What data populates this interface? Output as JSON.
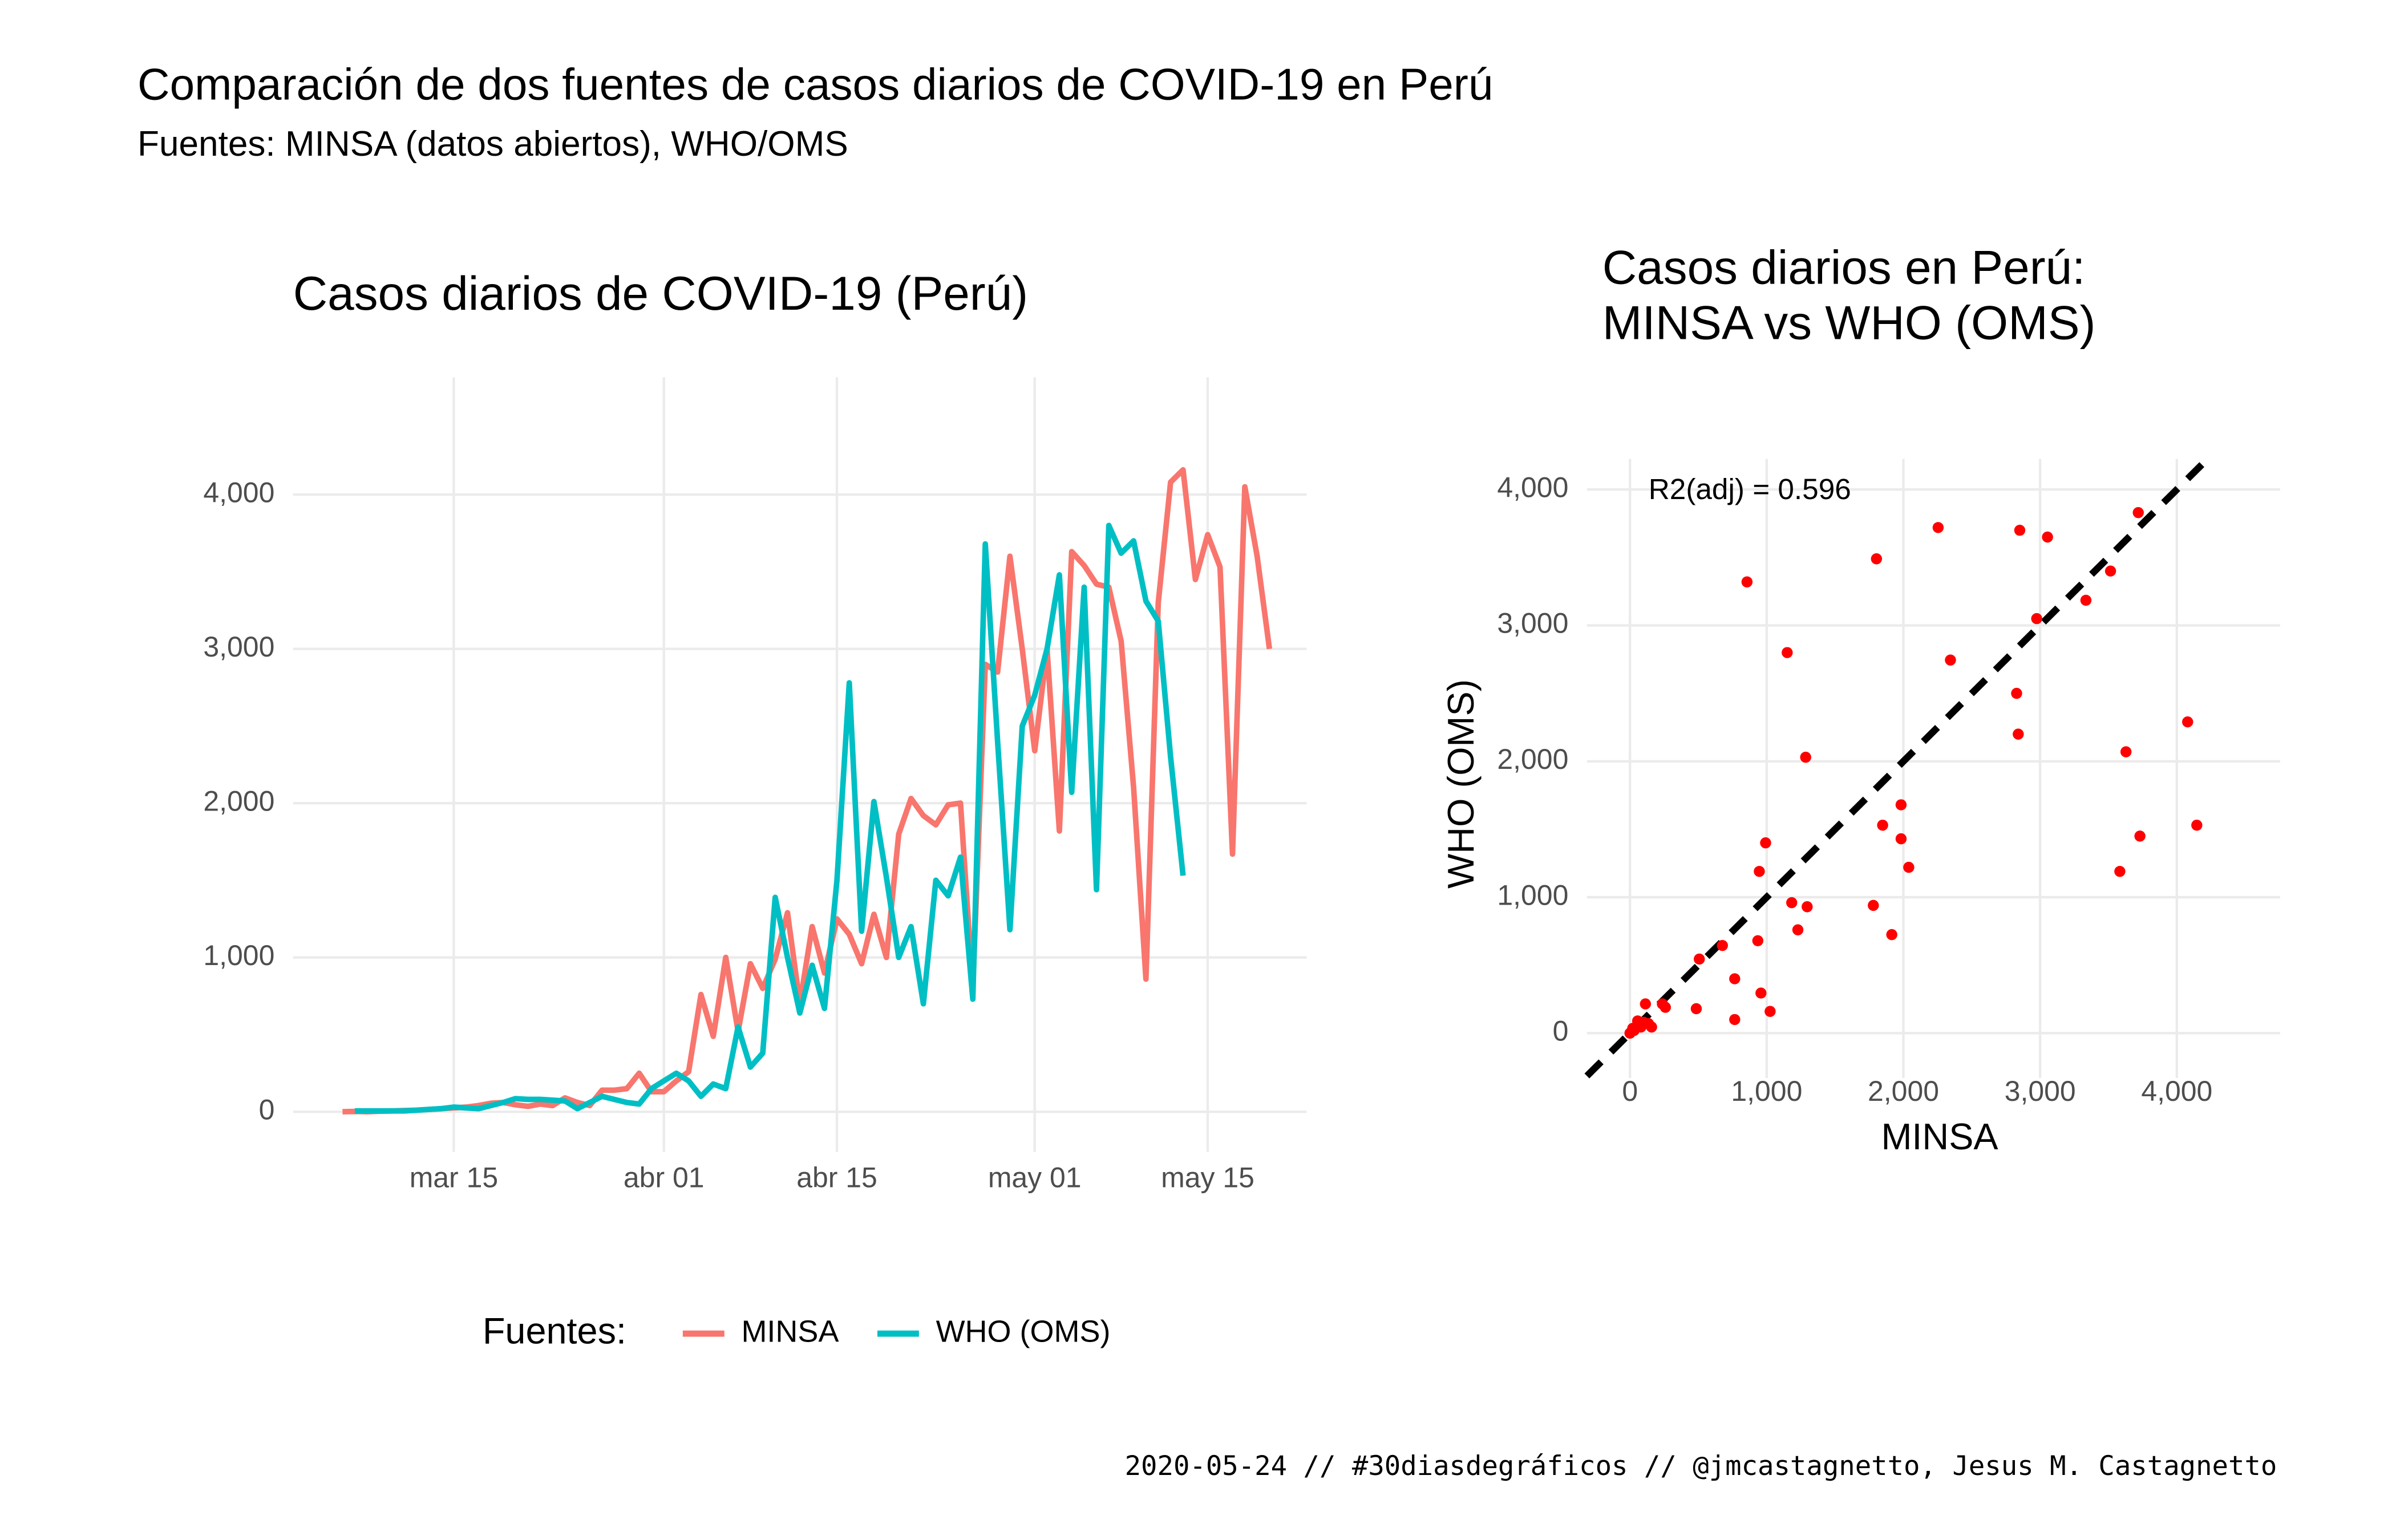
{
  "title": "Comparación de dos fuentes de casos diarios de COVID-19 en Perú",
  "subtitle": "Fuentes: MINSA (datos abiertos), WHO/OMS",
  "caption": "2020-05-24 // #30diasdegráficos // @jmcastagnetto, Jesus M. Castagnetto",
  "chart_data": [
    {
      "type": "line",
      "title": [
        "Casos diarios de COVID-19 (Perú)"
      ],
      "legend_title": "Fuentes:",
      "legend": "bottom",
      "grid": true,
      "x": [
        "03-06",
        "03-07",
        "03-08",
        "03-09",
        "03-10",
        "03-11",
        "03-12",
        "03-13",
        "03-14",
        "03-15",
        "03-16",
        "03-17",
        "03-18",
        "03-19",
        "03-20",
        "03-21",
        "03-22",
        "03-23",
        "03-24",
        "03-25",
        "03-26",
        "03-27",
        "03-28",
        "03-29",
        "03-30",
        "03-31",
        "04-01",
        "04-02",
        "04-03",
        "04-04",
        "04-05",
        "04-06",
        "04-07",
        "04-08",
        "04-09",
        "04-10",
        "04-11",
        "04-12",
        "04-13",
        "04-14",
        "04-15",
        "04-16",
        "04-17",
        "04-18",
        "04-19",
        "04-20",
        "04-21",
        "04-22",
        "04-23",
        "04-24",
        "04-25",
        "04-26",
        "04-27",
        "04-28",
        "04-29",
        "04-30",
        "05-01",
        "05-02",
        "05-03",
        "05-04",
        "05-05",
        "05-06",
        "05-07",
        "05-08",
        "05-09",
        "05-10",
        "05-11",
        "05-12",
        "05-13",
        "05-14",
        "05-15",
        "05-16",
        "05-17",
        "05-18",
        "05-19",
        "05-20"
      ],
      "series": [
        {
          "name": "MINSA",
          "color": "#F8766D",
          "values": [
            0,
            2,
            0,
            3,
            5,
            8,
            10,
            15,
            20,
            25,
            30,
            40,
            55,
            60,
            45,
            35,
            50,
            40,
            90,
            60,
            40,
            140,
            140,
            150,
            250,
            130,
            130,
            200,
            260,
            760,
            490,
            1000,
            520,
            960,
            800,
            990,
            1290,
            700,
            1200,
            900,
            1250,
            1150,
            960,
            1280,
            1000,
            1800,
            2030,
            1920,
            1860,
            1990,
            2000,
            800,
            2900,
            2850,
            3600,
            3000,
            2340,
            3000,
            1820,
            3630,
            3540,
            3420,
            3400,
            3050,
            2100,
            860,
            3300,
            4080,
            4160,
            3450,
            3740,
            3530,
            1670,
            4050,
            3600,
            3000
          ]
        },
        {
          "name": "WHO (OMS)",
          "color": "#00BFC4",
          "values": [
            null,
            5,
            5,
            5,
            5,
            5,
            10,
            15,
            20,
            30,
            25,
            20,
            40,
            60,
            85,
            80,
            80,
            75,
            70,
            20,
            60,
            100,
            80,
            60,
            50,
            150,
            200,
            250,
            200,
            100,
            180,
            150,
            550,
            290,
            380,
            1390,
            1000,
            640,
            950,
            670,
            1500,
            2780,
            1170,
            2010,
            1520,
            1000,
            1200,
            700,
            1500,
            1400,
            1650,
            730,
            3680,
            2400,
            1180,
            2500,
            2700,
            3000,
            3480,
            2070,
            3400,
            1440,
            3800,
            3620,
            3700,
            3310,
            3180,
            2300,
            1530,
            null,
            null,
            null,
            null,
            null,
            null,
            null
          ]
        }
      ],
      "xlim": [
        "03-02",
        "05-23"
      ],
      "xticks": [
        {
          "value": "03-15",
          "label": "mar 15"
        },
        {
          "value": "04-01",
          "label": "abr 01"
        },
        {
          "value": "04-15",
          "label": "abr 15"
        },
        {
          "value": "05-01",
          "label": "may 01"
        },
        {
          "value": "05-15",
          "label": "may 15"
        }
      ],
      "ylim": [
        -260,
        4760
      ],
      "yticks": [
        0,
        {
          "value": 1000,
          "label": "1,000"
        },
        {
          "value": 2000,
          "label": "2,000"
        },
        {
          "value": 3000,
          "label": "3,000"
        },
        {
          "value": 4000,
          "label": "4,000"
        }
      ]
    },
    {
      "type": "scatter",
      "title": [
        "Casos diarios en Perú:",
        "MINSA vs WHO (OMS)"
      ],
      "xlabel": "MINSA",
      "ylabel": "WHO (OMS)",
      "annotation": "R2(adj) = 0.596",
      "grid": true,
      "reference_line": "dashed",
      "series": [
        {
          "color": "#ff0000",
          "x": [
            856,
            1803,
            2254,
            2851,
            3054,
            3718,
            3515,
            3335,
            2975,
            1150,
            2344,
            2828,
            2840,
            1285,
            4079,
            3628,
            1983,
            1848,
            1983,
            2039,
            4146,
            3730,
            3583,
            992,
            946,
            1915,
            1780,
            1183,
            1296,
            1228,
            935,
            676,
            507,
            766,
            958,
            1025,
            766,
            485,
            237,
            259,
            113,
            20,
            56,
            100,
            158,
            80,
            0,
            30,
            135
          ],
          "values": [
            3320,
            3490,
            3720,
            3700,
            3650,
            3830,
            3400,
            3185,
            3050,
            2800,
            2745,
            2500,
            2200,
            2030,
            2290,
            2070,
            1680,
            1530,
            1430,
            1220,
            1530,
            1450,
            1190,
            1400,
            1190,
            725,
            940,
            960,
            930,
            760,
            680,
            645,
            545,
            400,
            295,
            160,
            100,
            180,
            215,
            190,
            215,
            35,
            90,
            80,
            45,
            45,
            0,
            20,
            70
          ]
        }
      ],
      "xlim": [
        -315,
        4755
      ],
      "xticks": [
        0,
        {
          "value": 1000,
          "label": "1,000"
        },
        {
          "value": 2000,
          "label": "2,000"
        },
        {
          "value": 3000,
          "label": "3,000"
        },
        {
          "value": 4000,
          "label": "4,000"
        }
      ],
      "ylim": [
        -330,
        4225
      ],
      "yticks": [
        0,
        {
          "value": 1000,
          "label": "1,000"
        },
        {
          "value": 2000,
          "label": "2,000"
        },
        {
          "value": 3000,
          "label": "3,000"
        },
        {
          "value": 4000,
          "label": "4,000"
        }
      ]
    }
  ]
}
